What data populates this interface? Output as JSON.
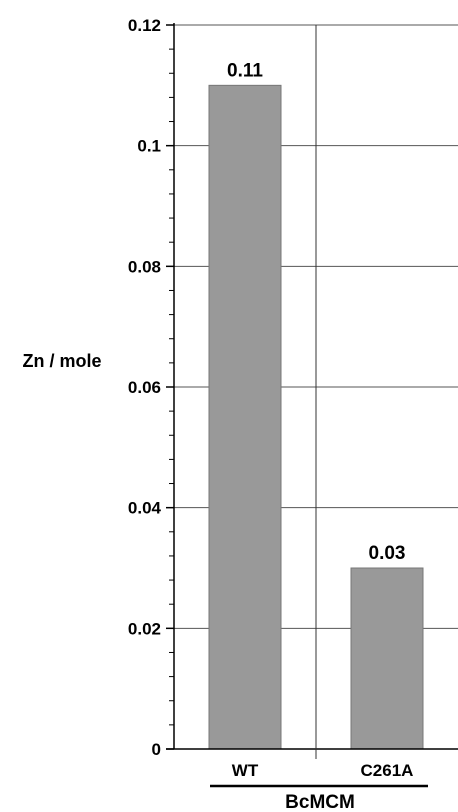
{
  "chart_data": {
    "type": "bar",
    "categories": [
      "WT",
      "C261A"
    ],
    "values": [
      0.11,
      0.03
    ],
    "data_labels": [
      "0.11",
      "0.03"
    ],
    "group_label": "BcMCM",
    "xlabel": "",
    "ylabel": "Zn / mole",
    "ylim": [
      0,
      0.12
    ],
    "yticks": [
      0,
      0.02,
      0.04,
      0.06,
      0.08,
      0.1,
      0.12
    ],
    "ytick_labels": [
      "0",
      "0.02",
      "0.04",
      "0.06",
      "0.08",
      "0.1",
      "0.12"
    ],
    "minor_ticks_per_major": 5,
    "grid": true,
    "bar_color": "#999999",
    "bar_edge_color": "#777777"
  }
}
